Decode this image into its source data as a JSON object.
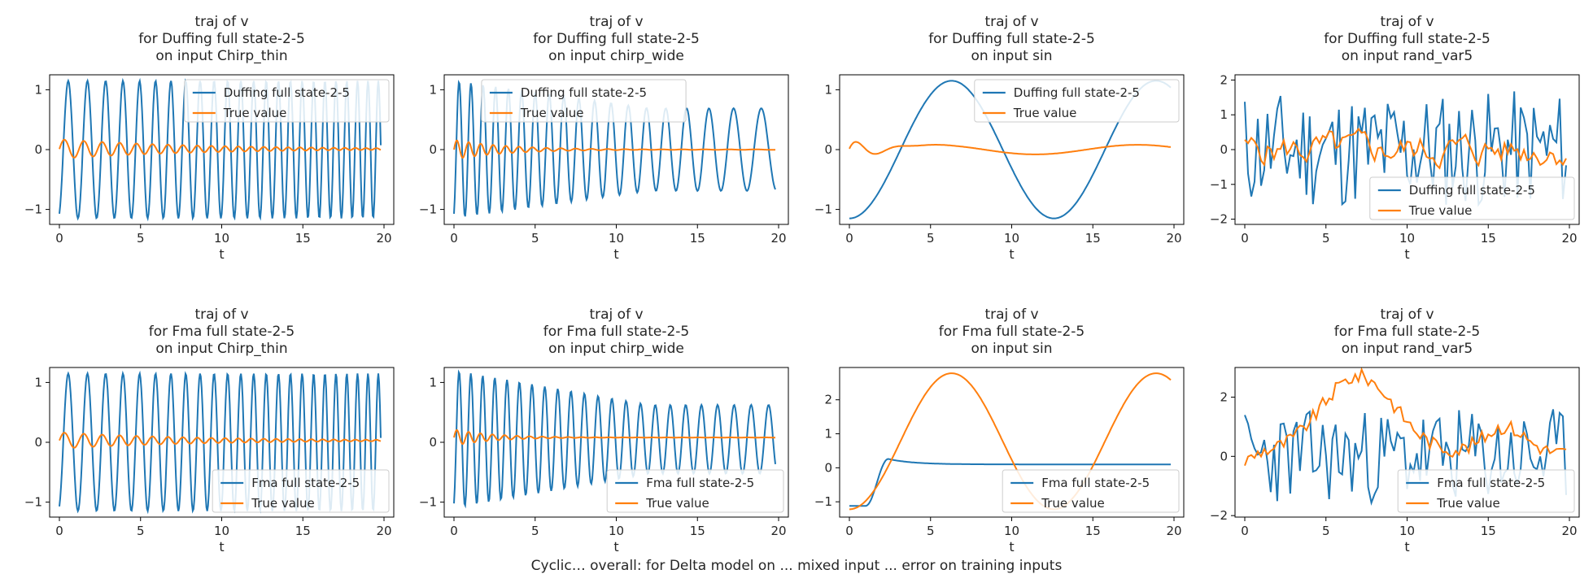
{
  "caption": "Cyclic… overall: for Delta model on ... mixed input ... error on training inputs",
  "chart_data": [
    {
      "type": "line",
      "title": [
        "traj of v",
        "for Duffing full state-2-5",
        "on input Chirp_thin"
      ],
      "xlabel": "t",
      "xlim": [
        0,
        20
      ],
      "ylim": [
        -1.25,
        1.25
      ],
      "xticks": [
        0,
        5,
        10,
        15,
        20
      ],
      "yticks": [
        -1,
        0,
        1
      ],
      "legend": "top-right",
      "series": [
        {
          "name": "Duffing full state-2-5",
          "color": "#1f77b4",
          "gen": "chirp",
          "params": {
            "amp": 1.15,
            "f0": 0.8,
            "f1": 1.6,
            "off": 0
          }
        },
        {
          "name": "True value",
          "color": "#ff7f0e",
          "gen": "chirp",
          "params": {
            "amp": 0.18,
            "f0": 0.8,
            "f1": 1.6,
            "off": 0.01,
            "decay": 0.12,
            "floor": 0.03
          }
        }
      ]
    },
    {
      "type": "line",
      "title": [
        "traj of v",
        "for Duffing full state-2-5",
        "on input chirp_wide"
      ],
      "xlabel": "t",
      "xlim": [
        0,
        20
      ],
      "ylim": [
        -1.25,
        1.25
      ],
      "xticks": [
        0,
        5,
        10,
        15,
        20
      ],
      "yticks": [
        -1,
        0,
        1
      ],
      "legend": "top-center",
      "series": [
        {
          "name": "Duffing full state-2-5",
          "color": "#1f77b4",
          "gen": "chirp",
          "params": {
            "amp": 1.15,
            "f0": 1.4,
            "f1": 0.5,
            "off": 0,
            "ampdecay": 0.4
          }
        },
        {
          "name": "True value",
          "color": "#ff7f0e",
          "gen": "chirp",
          "params": {
            "amp": 0.18,
            "f0": 1.4,
            "f1": 0.5,
            "off": 0.0,
            "decay": 0.3,
            "floor": 0.02
          }
        }
      ]
    },
    {
      "type": "line",
      "title": [
        "traj of v",
        "for Duffing full state-2-5",
        "on input sin"
      ],
      "xlabel": "t",
      "xlim": [
        0,
        20
      ],
      "ylim": [
        -1.25,
        1.25
      ],
      "xticks": [
        0,
        5,
        10,
        15,
        20
      ],
      "yticks": [
        -1,
        0,
        1
      ],
      "legend": "top-right",
      "series": [
        {
          "name": "Duffing full state-2-5",
          "color": "#1f77b4",
          "gen": "sin",
          "params": {
            "amp": 1.15,
            "period": 12.6,
            "phase": -1.57,
            "off": 0,
            "ramp": 1.6
          }
        },
        {
          "name": "True value",
          "color": "#ff7f0e",
          "gen": "damped",
          "params": {
            "amp": 0.28,
            "period": 2.6,
            "decay": 0.9,
            "slow": 0.08,
            "slowperiod": 12.6
          }
        }
      ]
    },
    {
      "type": "line",
      "title": [
        "traj of v",
        "for Duffing full state-2-5",
        "on input rand_var5"
      ],
      "xlabel": "t",
      "xlim": [
        0,
        20
      ],
      "ylim": [
        -2.15,
        2.15
      ],
      "xticks": [
        0,
        5,
        10,
        15,
        20
      ],
      "yticks": [
        -2,
        -1,
        0,
        1,
        2
      ],
      "legend": "bottom-right",
      "series": [
        {
          "name": "Duffing full state-2-5",
          "color": "#1f77b4",
          "gen": "noise",
          "params": {
            "amp": 1.7,
            "seed": 11,
            "off": 0
          }
        },
        {
          "name": "True value",
          "color": "#ff7f0e",
          "gen": "smoothnoise",
          "params": {
            "amp": 0.45,
            "seed": 5,
            "off": 0.0
          }
        }
      ]
    },
    {
      "type": "line",
      "title": [
        "traj of v",
        "for Fma full state-2-5",
        "on input Chirp_thin"
      ],
      "xlabel": "t",
      "xlim": [
        0,
        20
      ],
      "ylim": [
        -1.25,
        1.25
      ],
      "xticks": [
        0,
        5,
        10,
        15,
        20
      ],
      "yticks": [
        -1,
        0,
        1
      ],
      "legend": "bottom-right",
      "series": [
        {
          "name": "Fma full state-2-5",
          "color": "#1f77b4",
          "gen": "chirp",
          "params": {
            "amp": 1.15,
            "f0": 0.8,
            "f1": 1.6,
            "off": 0
          }
        },
        {
          "name": "True value",
          "color": "#ff7f0e",
          "gen": "chirp",
          "params": {
            "amp": 0.15,
            "f0": 0.8,
            "f1": 1.6,
            "off": 0.03,
            "decay": 0.12,
            "floor": 0.03
          }
        }
      ]
    },
    {
      "type": "line",
      "title": [
        "traj of v",
        "for Fma full state-2-5",
        "on input chirp_wide"
      ],
      "xlabel": "t",
      "xlim": [
        0,
        20
      ],
      "ylim": [
        -1.25,
        1.25
      ],
      "xticks": [
        0,
        5,
        10,
        15,
        20
      ],
      "yticks": [
        -1,
        0,
        1
      ],
      "legend": "bottom-right",
      "series": [
        {
          "name": "Fma full state-2-5",
          "color": "#1f77b4",
          "gen": "chirp",
          "params": {
            "amp": 1.15,
            "f0": 1.4,
            "f1": 0.9,
            "off": 0.05,
            "ampdecay": 0.5
          }
        },
        {
          "name": "True value",
          "color": "#ff7f0e",
          "gen": "chirp",
          "params": {
            "amp": 0.15,
            "f0": 1.4,
            "f1": 0.9,
            "off": 0.08,
            "decay": 0.4,
            "floor": 0.01
          }
        }
      ]
    },
    {
      "type": "line",
      "title": [
        "traj of v",
        "for Fma full state-2-5",
        "on input sin"
      ],
      "xlabel": "t",
      "xlim": [
        0,
        20
      ],
      "ylim": [
        -1.45,
        2.95
      ],
      "xticks": [
        0,
        5,
        10,
        15,
        20
      ],
      "yticks": [
        -1,
        0,
        1,
        2
      ],
      "legend": "bottom-right",
      "series": [
        {
          "name": "Fma full state-2-5",
          "color": "#1f77b4",
          "gen": "step",
          "params": {
            "low": -1.12,
            "high": 0.26,
            "t0": 1.0,
            "t1": 2.4,
            "settle": 0.1
          }
        },
        {
          "name": "True value",
          "color": "#ff7f0e",
          "gen": "sin",
          "params": {
            "amp": 2.0,
            "period": 12.6,
            "phase": -1.57,
            "off": 0.78,
            "ramp": 0
          }
        }
      ]
    },
    {
      "type": "line",
      "title": [
        "traj of v",
        "for Fma full state-2-5",
        "on input rand_var5"
      ],
      "xlabel": "t",
      "xlim": [
        0,
        20
      ],
      "ylim": [
        -2.05,
        3.0
      ],
      "xticks": [
        0,
        5,
        10,
        15,
        20
      ],
      "yticks": [
        -2,
        0,
        2
      ],
      "legend": "bottom-right",
      "series": [
        {
          "name": "Fma full state-2-5",
          "color": "#1f77b4",
          "gen": "noise",
          "params": {
            "amp": 1.6,
            "seed": 23,
            "off": 0
          }
        },
        {
          "name": "True value",
          "color": "#ff7f0e",
          "gen": "fmatrue",
          "params": {
            "seed": 9
          }
        }
      ]
    }
  ]
}
